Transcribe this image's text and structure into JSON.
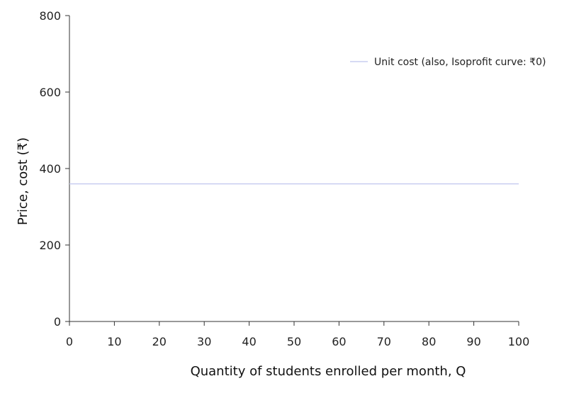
{
  "chart_data": {
    "type": "line",
    "xlabel": "Quantity of students enrolled per month, Q",
    "ylabel": "Price, cost (₹)",
    "xlim": [
      0,
      100
    ],
    "ylim": [
      0,
      800
    ],
    "x_ticks": [
      0,
      10,
      20,
      30,
      40,
      50,
      60,
      70,
      80,
      90,
      100
    ],
    "y_ticks": [
      0,
      200,
      400,
      600,
      800
    ],
    "x_tick_labels": [
      "0",
      "10",
      "20",
      "30",
      "40",
      "50",
      "60",
      "70",
      "80",
      "90",
      "100"
    ],
    "y_tick_labels": [
      "0",
      "200",
      "400",
      "600",
      "800"
    ],
    "grid": false,
    "legend_position": "top-right",
    "series": [
      {
        "name": "Unit cost (also, Isoprofit curve: ₹0)",
        "color": "#c8cdf0",
        "x": [
          0,
          100
        ],
        "y": [
          360,
          360
        ]
      }
    ]
  }
}
